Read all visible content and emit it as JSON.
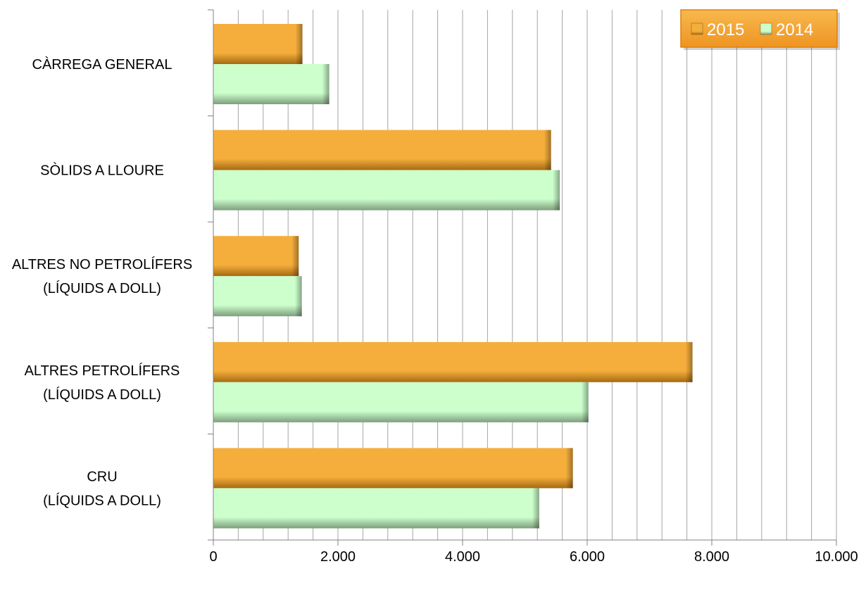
{
  "chart_data": {
    "type": "bar",
    "orientation": "horizontal",
    "categories": [
      [
        "CÀRREGA GENERAL"
      ],
      [
        "SÒLIDS A LLOURE"
      ],
      [
        "ALTRES NO PETROLÍFERS",
        "(LÍQUIDS A DOLL)"
      ],
      [
        "ALTRES PETROLÍFERS",
        "(LÍQUIDS A DOLL)"
      ],
      [
        "CRU",
        "(LÍQUIDS A DOLL)"
      ]
    ],
    "series": [
      {
        "name": "2015",
        "values": [
          1430,
          5420,
          1370,
          7690,
          5770
        ]
      },
      {
        "name": "2014",
        "values": [
          1860,
          5560,
          1420,
          6020,
          5230
        ]
      }
    ],
    "xlim": [
      0,
      10000
    ],
    "xticks": [
      0,
      2000,
      4000,
      6000,
      8000,
      10000
    ],
    "xtick_labels": [
      "0",
      "2.000",
      "4.000",
      "6.000",
      "8.000",
      "10.000"
    ],
    "minor_gridlines": 25,
    "grid": true,
    "legend_position": "top-right",
    "colors": {
      "2015": "#F5AE3C",
      "2015_shade": "#A56A12",
      "2014": "#CCFFCC",
      "2014_shade": "#7E9E7E",
      "gridline": "#A6A6A6",
      "axis": "#808080",
      "legend_bg": "#F7A93B",
      "legend_border": "#E07F10"
    }
  }
}
